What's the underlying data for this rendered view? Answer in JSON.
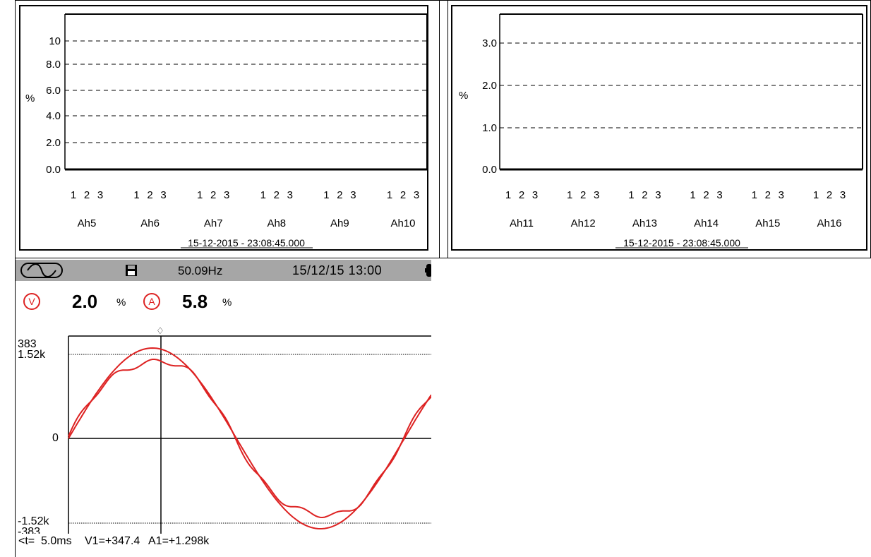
{
  "panel_left": {
    "ylabel": "%",
    "yticks": [
      "10",
      "8.0",
      "6.0",
      "4.0",
      "2.0",
      "0.0"
    ],
    "phase_labels": [
      "1",
      "2",
      "3"
    ],
    "harmonics": [
      "Ah5",
      "Ah6",
      "Ah7",
      "Ah8",
      "Ah9",
      "Ah10"
    ],
    "timestamp": "15-12-2015 - 23:08:45.000"
  },
  "panel_right": {
    "ylabel": "%",
    "yticks": [
      "3.0",
      "2.0",
      "1.0",
      "0.0"
    ],
    "phase_labels": [
      "1",
      "2",
      "3"
    ],
    "harmonics": [
      "Ah11",
      "Ah12",
      "Ah13",
      "Ah14",
      "Ah15",
      "Ah16"
    ],
    "timestamp": "15-12-2015 - 23:08:45.000"
  },
  "scope": {
    "status_bar": {
      "waveform_icon": "sine-wave-icon",
      "save_icon": "floppy-disk-icon",
      "frequency": "50.09Hz",
      "datetime": "15/12/15 13:00",
      "battery_icon": "battery-icon"
    },
    "measure_row": {
      "v_symbol": "V",
      "v_value": "2.0",
      "v_unit": "%",
      "a_symbol": "A",
      "a_value": "5.8",
      "a_unit": "%"
    },
    "axis_left": {
      "top_v": "383",
      "top_a": "1.52k",
      "zero": "0",
      "bottom_a": "-1.52k",
      "bottom_v": "-383"
    },
    "cursor_marker": "♢",
    "readout": {
      "t": "<t=  5.0ms",
      "v1": "V1=+347.4",
      "a1": "A1=+1.298k"
    },
    "trace_color": "#dd2222"
  }
}
